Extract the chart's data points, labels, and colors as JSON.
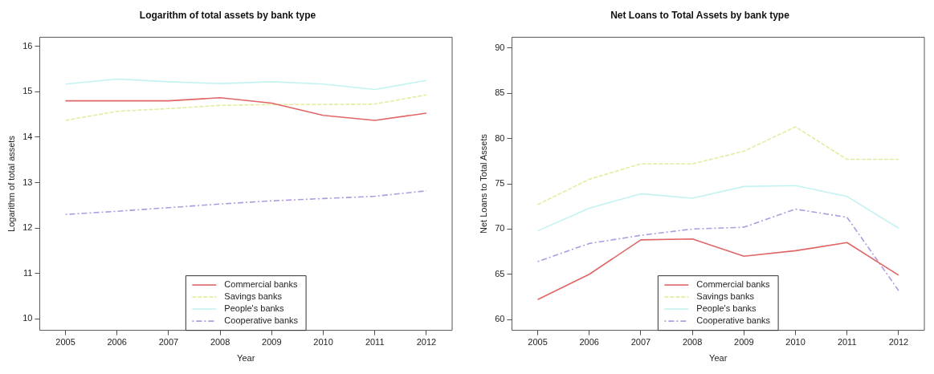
{
  "chart_data": [
    {
      "type": "line",
      "title": "Logarithm of total assets by bank type",
      "xlabel": "Year",
      "ylabel": "Logarithm of total assets",
      "categories": [
        "2005",
        "2006",
        "2007",
        "2008",
        "2009",
        "2010",
        "2011",
        "2012"
      ],
      "series": [
        {
          "name": "Commercial banks",
          "color": "#e06666",
          "line_style": "solid",
          "values": [
            14.8,
            14.8,
            14.8,
            14.87,
            14.75,
            14.48,
            14.37,
            14.53
          ]
        },
        {
          "name": "Savings banks",
          "color": "#e4eca0",
          "line_style": "dashed",
          "values": [
            14.37,
            14.57,
            14.63,
            14.7,
            14.72,
            14.72,
            14.73,
            14.93
          ]
        },
        {
          "name": "People's banks",
          "color": "#c4f2f2",
          "line_style": "solid",
          "values": [
            15.17,
            15.28,
            15.22,
            15.18,
            15.22,
            15.17,
            15.05,
            15.25
          ]
        },
        {
          "name": "Cooperative banks",
          "color": "#b09ce0",
          "line_style": "dotted",
          "values": [
            12.3,
            12.37,
            12.45,
            12.53,
            12.6,
            12.65,
            12.7,
            12.82
          ]
        }
      ],
      "ylim": [
        9.75,
        16.2
      ],
      "yticks": [
        10,
        11,
        12,
        13,
        14,
        15,
        16
      ],
      "grid": false,
      "legend": "bottom",
      "marker": "none"
    },
    {
      "type": "line",
      "title": "Net Loans to Total Assets by bank type",
      "xlabel": "Year",
      "ylabel": "Net Loans to Total Assets",
      "categories": [
        "2005",
        "2006",
        "2007",
        "2008",
        "2009",
        "2010",
        "2011",
        "2012"
      ],
      "series": [
        {
          "name": "Commercial banks",
          "color": "#e06666",
          "line_style": "solid",
          "values": [
            62.2,
            65.0,
            68.8,
            68.9,
            67.0,
            67.6,
            68.5,
            64.9
          ]
        },
        {
          "name": "Savings banks",
          "color": "#e4eca0",
          "line_style": "dashed",
          "values": [
            72.7,
            75.5,
            77.2,
            77.2,
            78.6,
            81.3,
            77.7,
            77.7
          ]
        },
        {
          "name": "People's banks",
          "color": "#c4f2f2",
          "line_style": "solid",
          "values": [
            69.8,
            72.3,
            73.9,
            73.4,
            74.7,
            74.8,
            73.6,
            70.1
          ]
        },
        {
          "name": "Cooperative banks",
          "color": "#b09ce0",
          "line_style": "dotted",
          "values": [
            66.4,
            68.4,
            69.3,
            70.0,
            70.2,
            72.2,
            71.3,
            63.2
          ]
        }
      ],
      "ylim": [
        58.8,
        91.2
      ],
      "yticks": [
        60,
        65,
        70,
        75,
        80,
        85,
        90
      ],
      "grid": false,
      "legend": "bottom",
      "marker": "none"
    }
  ]
}
